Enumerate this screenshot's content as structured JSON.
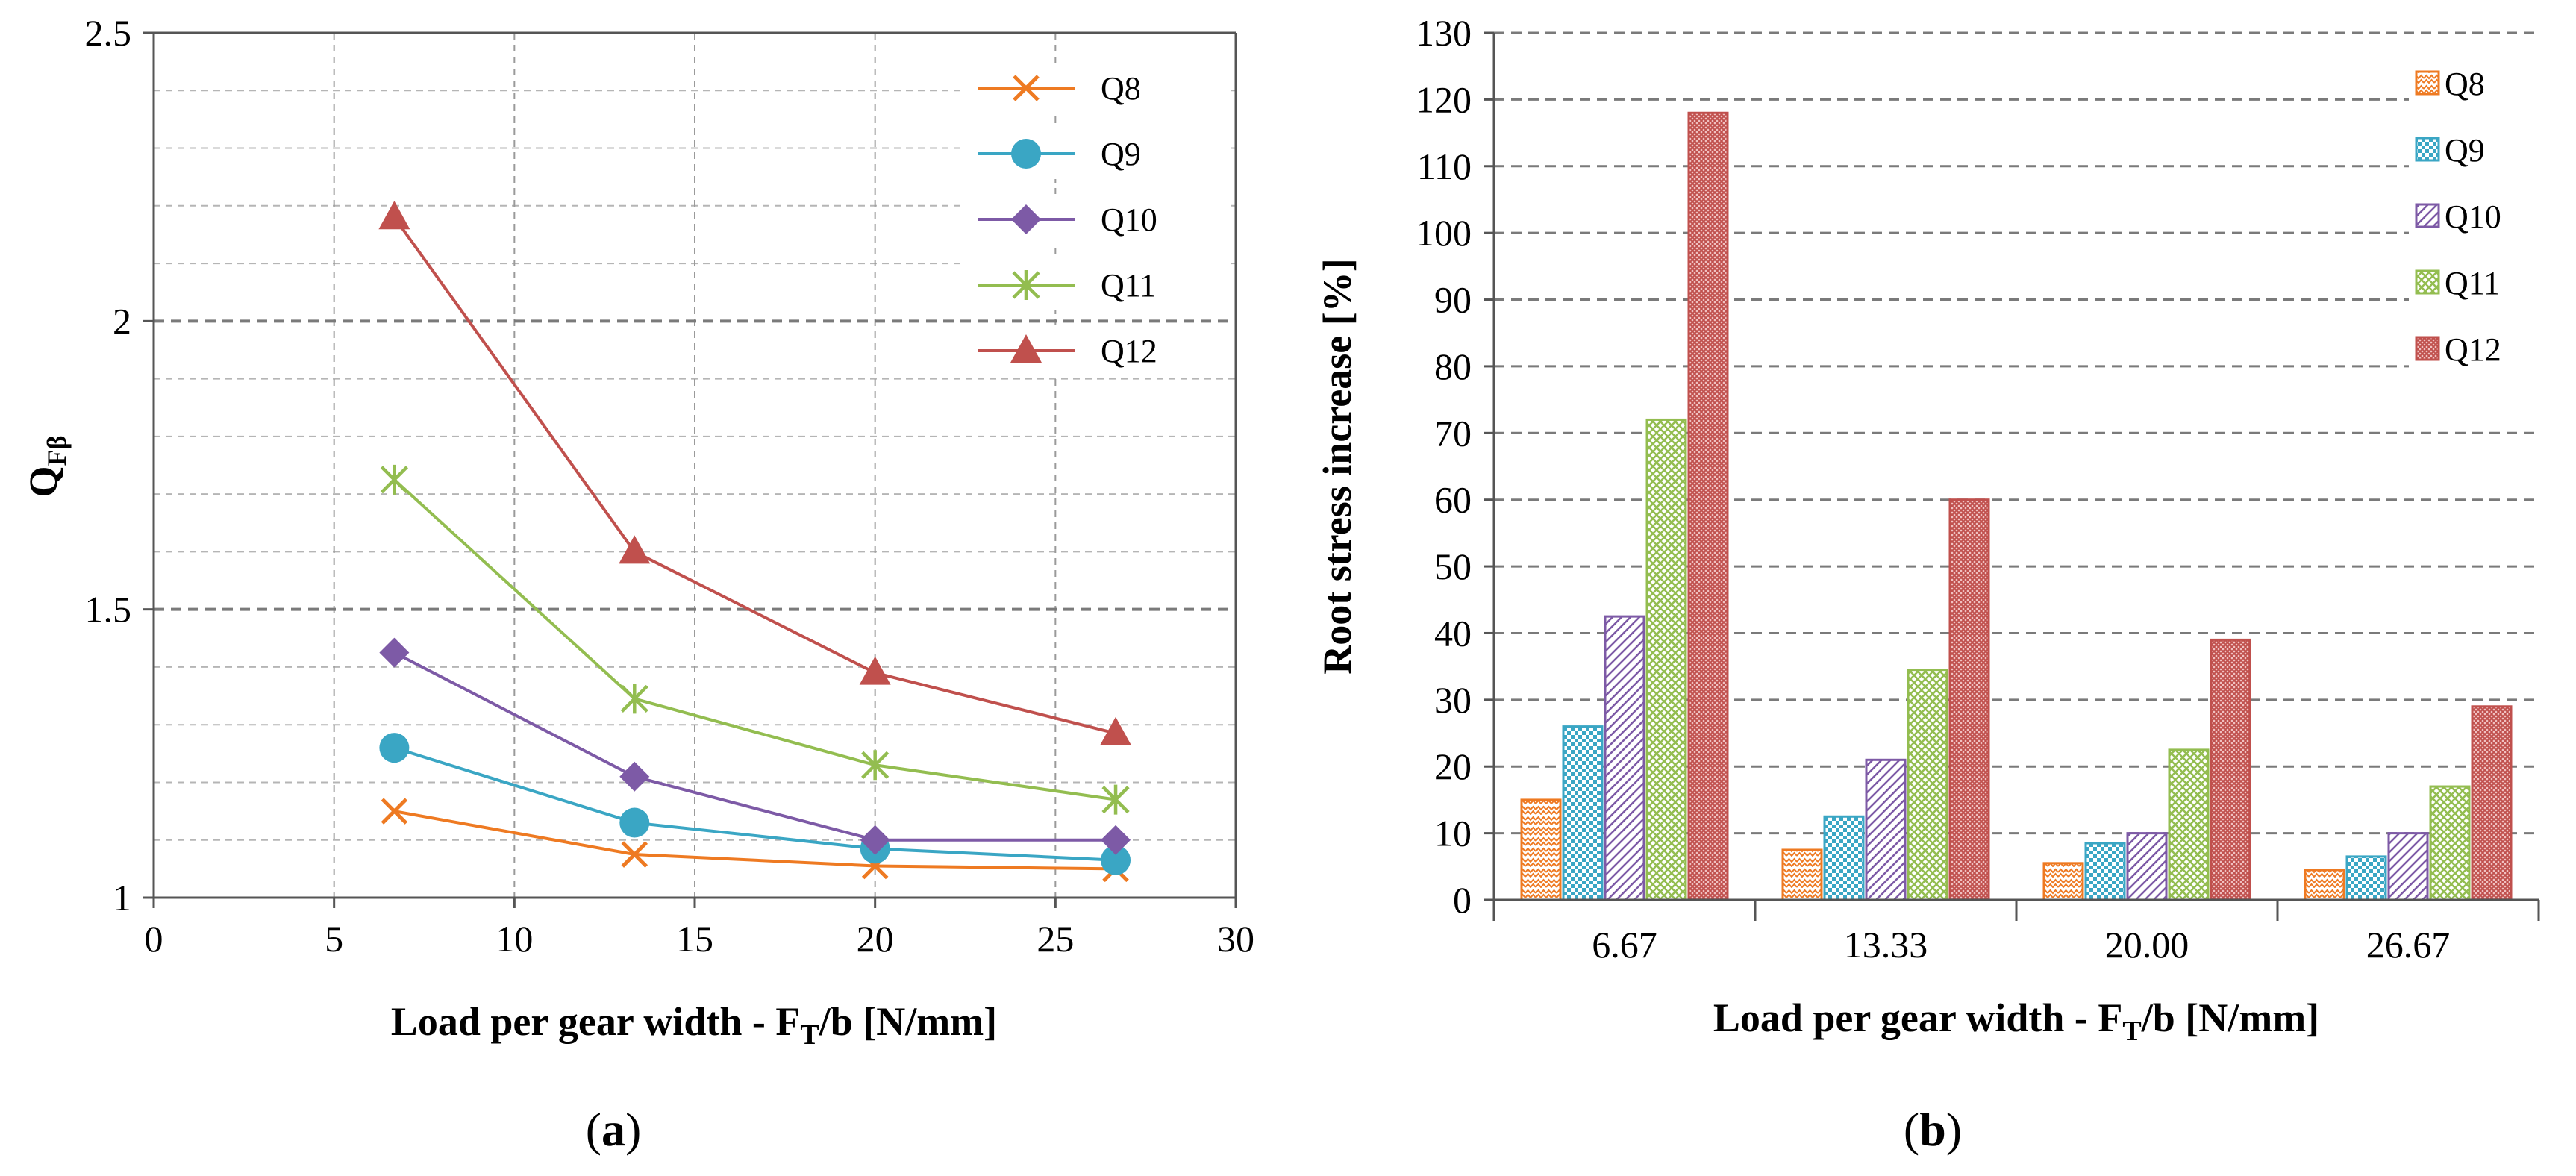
{
  "chart_data": [
    {
      "panel_label": "a",
      "type": "line",
      "xlabel": "Load per gear width - F",
      "xlabel_sub": "T",
      "xlabel_tail": "/b [N/mm]",
      "ylabel": "Q",
      "ylabel_sub": "Fβ",
      "xlim": [
        0,
        30
      ],
      "ylim": [
        1,
        2.5
      ],
      "xticks": [
        0,
        5,
        10,
        15,
        20,
        25,
        30
      ],
      "xtick_labels": [
        "0",
        "5",
        "10",
        "15",
        "20",
        "25",
        "30"
      ],
      "yticks": [
        1,
        1.5,
        2,
        2.5
      ],
      "ytick_labels": [
        "1",
        "1.5",
        "2",
        "2.5"
      ],
      "grid": true,
      "legend_position": "top-right",
      "x": [
        6.67,
        13.33,
        20.0,
        26.67
      ],
      "series": [
        {
          "name": "Q8",
          "marker": "x",
          "color": "#ee7a22",
          "values": [
            1.15,
            1.075,
            1.055,
            1.05
          ]
        },
        {
          "name": "Q9",
          "marker": "circle",
          "color": "#3aa6c4",
          "values": [
            1.26,
            1.13,
            1.085,
            1.065
          ]
        },
        {
          "name": "Q10",
          "marker": "diamond",
          "color": "#7d5aa6",
          "values": [
            1.425,
            1.21,
            1.1,
            1.1
          ]
        },
        {
          "name": "Q11",
          "marker": "star",
          "color": "#93bd50",
          "values": [
            1.725,
            1.345,
            1.23,
            1.17
          ]
        },
        {
          "name": "Q12",
          "marker": "triangle",
          "color": "#c0504d",
          "values": [
            2.18,
            1.6,
            1.39,
            1.285
          ]
        }
      ]
    },
    {
      "panel_label": "b",
      "type": "bar",
      "xlabel": "Load per gear width - F",
      "xlabel_sub": "T",
      "xlabel_tail": "/b [N/mm]",
      "ylabel": "Root  stress increase [%]",
      "ylim": [
        0,
        130
      ],
      "yticks": [
        0,
        10,
        20,
        30,
        40,
        50,
        60,
        70,
        80,
        90,
        100,
        110,
        120,
        130
      ],
      "ytick_labels": [
        "0",
        "10",
        "20",
        "30",
        "40",
        "50",
        "60",
        "70",
        "80",
        "90",
        "100",
        "110",
        "120",
        "130"
      ],
      "grid": true,
      "legend_position": "top-right",
      "categories": [
        "6.67",
        "13.33",
        "20.00",
        "26.67"
      ],
      "series": [
        {
          "name": "Q8",
          "color": "#ee7a22",
          "pattern": "zigzag",
          "values": [
            15,
            7.5,
            5.5,
            4.5
          ]
        },
        {
          "name": "Q9",
          "color": "#3aa6c4",
          "pattern": "checker",
          "values": [
            26,
            12.5,
            8.5,
            6.5
          ]
        },
        {
          "name": "Q10",
          "color": "#7d5aa6",
          "pattern": "diagonal",
          "values": [
            42.5,
            21,
            10,
            10
          ]
        },
        {
          "name": "Q11",
          "color": "#93bd50",
          "pattern": "cross",
          "values": [
            72,
            34.5,
            22.5,
            17
          ]
        },
        {
          "name": "Q12",
          "color": "#c0504d",
          "pattern": "dense",
          "values": [
            118,
            60,
            39,
            29
          ]
        }
      ]
    }
  ]
}
